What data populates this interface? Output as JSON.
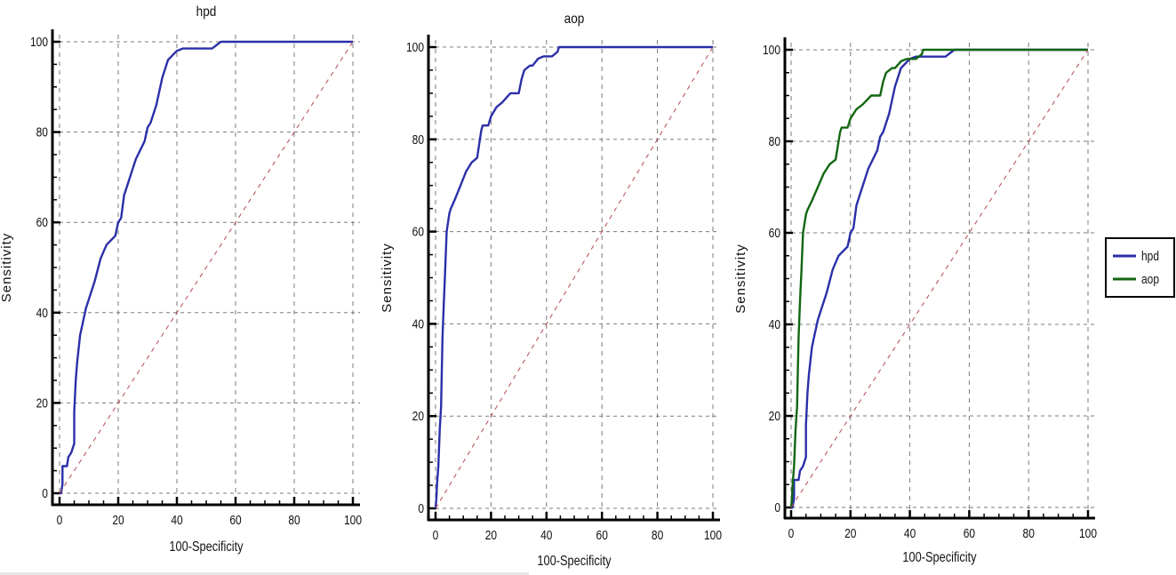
{
  "chart_data": [
    {
      "type": "line",
      "title": "hpd",
      "xlabel": "100-Specificity",
      "ylabel": "Sensitivity",
      "xlim": [
        0,
        100
      ],
      "ylim": [
        0,
        100
      ],
      "xticks": [
        "0",
        "20",
        "40",
        "60",
        "80",
        "100"
      ],
      "yticks": [
        "0",
        "20",
        "40",
        "60",
        "80",
        "100"
      ],
      "grid": true,
      "series": [
        {
          "name": "hpd",
          "color": "#2b2fa8",
          "x": [
            0,
            0.5,
            1,
            1,
            2.5,
            3,
            4,
            5,
            5,
            5.5,
            6,
            7,
            8,
            9,
            10,
            12,
            14,
            16,
            19,
            20,
            21,
            22,
            23,
            26,
            29,
            30,
            31,
            33,
            35,
            37,
            40,
            42,
            45,
            52,
            55,
            100
          ],
          "y": [
            0,
            0,
            2,
            6,
            6,
            8,
            9,
            11,
            18,
            25,
            29,
            35,
            38,
            41,
            43,
            47,
            52,
            55,
            57,
            60,
            61,
            66,
            68,
            74,
            78,
            81,
            82,
            86,
            92,
            96,
            98,
            98.5,
            98.5,
            98.5,
            100,
            100
          ]
        },
        {
          "name": "reference",
          "color": "#b5484f",
          "dashed": true,
          "x": [
            0,
            100
          ],
          "y": [
            0,
            100
          ]
        }
      ]
    },
    {
      "type": "line",
      "title": "aop",
      "xlabel": "100-Specificity",
      "ylabel": "Sensitivity",
      "xlim": [
        0,
        100
      ],
      "ylim": [
        0,
        100
      ],
      "xticks": [
        "0",
        "20",
        "40",
        "60",
        "80",
        "100"
      ],
      "yticks": [
        "0",
        "20",
        "40",
        "60",
        "80",
        "100"
      ],
      "grid": true,
      "series": [
        {
          "name": "aop",
          "color": "#2b2fa8",
          "x": [
            0,
            0.3,
            0.5,
            1,
            1.5,
            2,
            2.5,
            3,
            3.5,
            4,
            5,
            5.5,
            7,
            9,
            11,
            13,
            15,
            16,
            16.5,
            17,
            18,
            19,
            20,
            22,
            24,
            27,
            28,
            30,
            31,
            32,
            34,
            35,
            37,
            39,
            42,
            44,
            44.5,
            100
          ],
          "y": [
            0,
            2,
            5,
            9,
            17,
            22,
            37,
            45,
            52,
            60,
            64,
            65,
            67,
            70,
            73,
            75,
            76,
            80,
            82,
            83,
            83,
            83,
            85,
            87,
            88,
            90,
            90,
            90,
            93,
            95,
            96,
            96,
            97.5,
            98,
            98,
            99,
            100,
            100
          ]
        },
        {
          "name": "reference",
          "color": "#b5484f",
          "dashed": true,
          "x": [
            0,
            100
          ],
          "y": [
            0,
            100
          ]
        }
      ]
    },
    {
      "type": "line",
      "title": "",
      "xlabel": "100-Specificity",
      "ylabel": "Sensitivity",
      "xlim": [
        0,
        100
      ],
      "ylim": [
        0,
        100
      ],
      "xticks": [
        "0",
        "20",
        "40",
        "60",
        "80",
        "100"
      ],
      "yticks": [
        "0",
        "20",
        "40",
        "60",
        "80",
        "100"
      ],
      "grid": true,
      "legend": {
        "position": "right",
        "entries": [
          "hpd",
          "aop"
        ]
      },
      "series": [
        {
          "name": "hpd",
          "color": "#2b2fa8",
          "x": [
            0,
            0.5,
            1,
            1,
            2.5,
            3,
            4,
            5,
            5,
            5.5,
            6,
            7,
            8,
            9,
            10,
            12,
            14,
            16,
            19,
            20,
            21,
            22,
            23,
            26,
            29,
            30,
            31,
            33,
            35,
            37,
            40,
            42,
            45,
            52,
            55,
            100
          ],
          "y": [
            0,
            0,
            2,
            6,
            6,
            8,
            9,
            11,
            18,
            25,
            29,
            35,
            38,
            41,
            43,
            47,
            52,
            55,
            57,
            60,
            61,
            66,
            68,
            74,
            78,
            81,
            82,
            86,
            92,
            96,
            98,
            98.5,
            98.5,
            98.5,
            100,
            100
          ]
        },
        {
          "name": "aop",
          "color": "#116611",
          "x": [
            0,
            0.3,
            0.5,
            1,
            1.5,
            2,
            2.5,
            3,
            3.5,
            4,
            5,
            5.5,
            7,
            9,
            11,
            13,
            15,
            16,
            16.5,
            17,
            18,
            19,
            20,
            22,
            24,
            27,
            28,
            30,
            31,
            32,
            34,
            35,
            37,
            39,
            42,
            44,
            44.5,
            100
          ],
          "y": [
            0,
            2,
            5,
            9,
            17,
            22,
            37,
            45,
            52,
            60,
            64,
            65,
            67,
            70,
            73,
            75,
            76,
            80,
            82,
            83,
            83,
            83,
            85,
            87,
            88,
            90,
            90,
            90,
            93,
            95,
            96,
            96,
            97.5,
            98,
            98,
            99,
            100,
            100
          ]
        },
        {
          "name": "reference",
          "color": "#b5484f",
          "dashed": true,
          "x": [
            0,
            100
          ],
          "y": [
            0,
            100
          ]
        }
      ]
    }
  ],
  "panels": [
    {
      "title": "hpd",
      "ylabel": "Sensitivity",
      "xlabel": "100-Specificity"
    },
    {
      "title": "aop",
      "ylabel": "Sensitivity",
      "xlabel": "100-Specificity"
    },
    {
      "title": "",
      "ylabel": "Sensitivity",
      "xlabel": "100-Specificity"
    }
  ],
  "legend": {
    "items": [
      {
        "label": "hpd",
        "color": "#2b2fa8"
      },
      {
        "label": "aop",
        "color": "#116611"
      }
    ]
  }
}
